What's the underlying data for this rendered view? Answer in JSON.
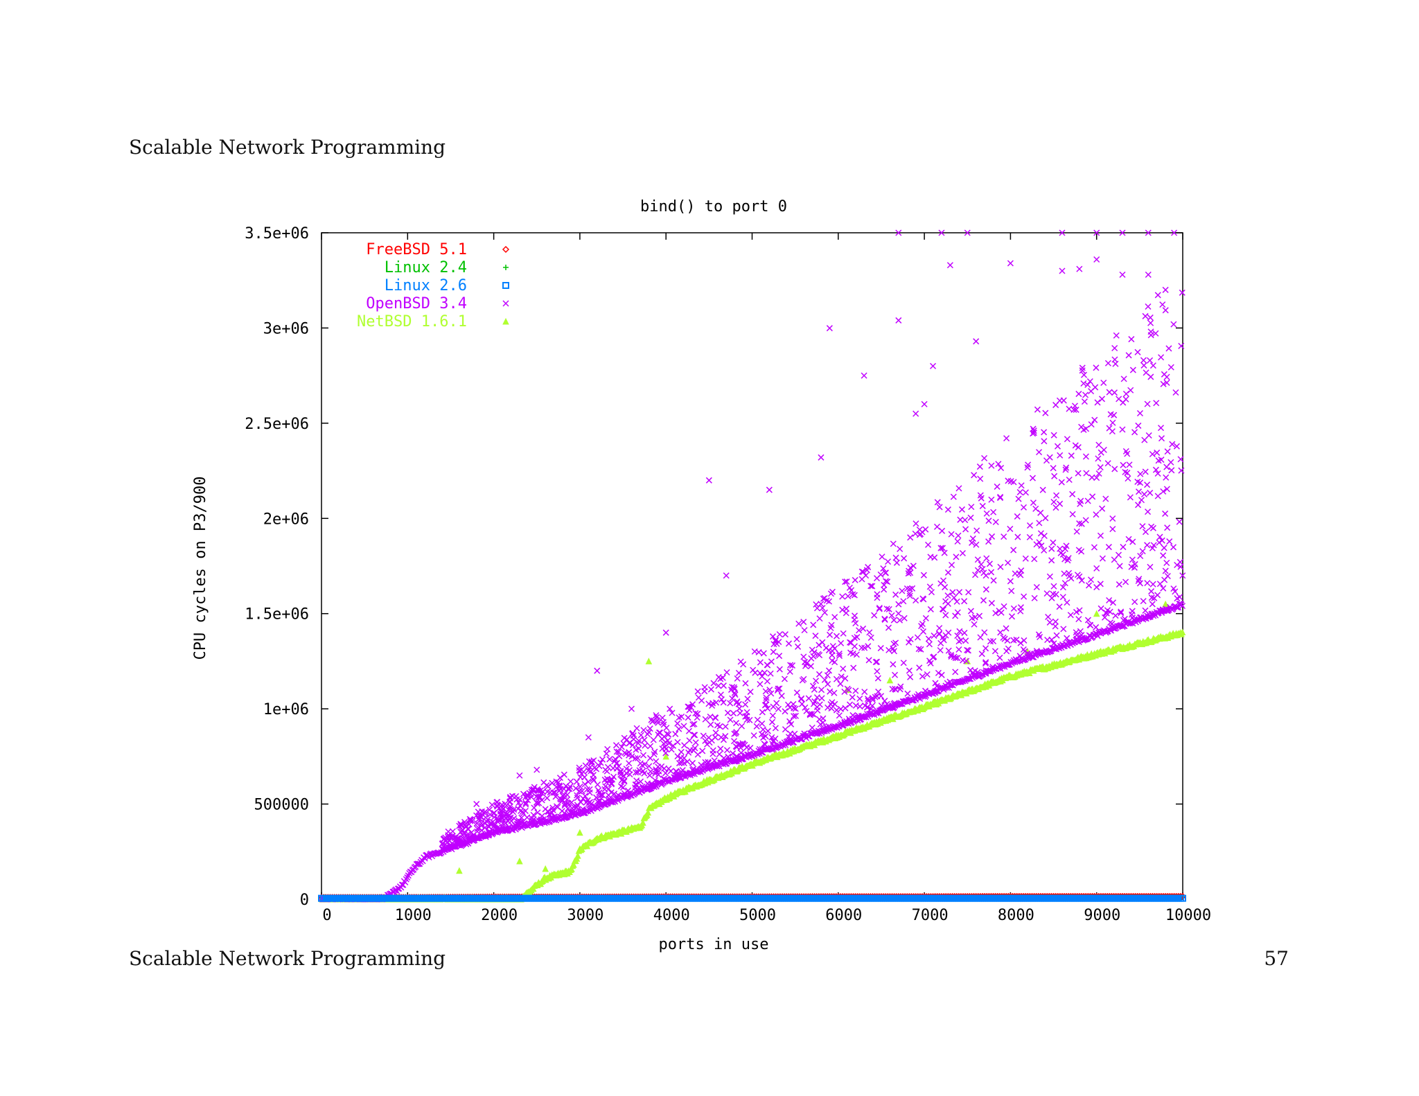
{
  "page": {
    "header_title": "Scalable Network Programming",
    "footer_title": "Scalable Network Programming",
    "page_number": "57"
  },
  "chart_data": {
    "type": "scatter",
    "title": "bind() to port 0",
    "xlabel": "ports in use",
    "ylabel": "CPU cycles on P3/900",
    "xlim": [
      0,
      10000
    ],
    "ylim": [
      0,
      3500000
    ],
    "x_ticks": [
      0,
      1000,
      2000,
      3000,
      4000,
      5000,
      6000,
      7000,
      8000,
      9000,
      10000
    ],
    "x_tick_labels": [
      "0",
      "1000",
      "2000",
      "3000",
      "4000",
      "5000",
      "6000",
      "7000",
      "8000",
      "9000",
      "10000"
    ],
    "y_ticks": [
      0,
      500000,
      1000000,
      1500000,
      2000000,
      2500000,
      3000000,
      3500000
    ],
    "y_tick_labels": [
      "0",
      "500000",
      "1e+06",
      "1.5e+06",
      "2e+06",
      "2.5e+06",
      "3e+06",
      "3.5e+06"
    ],
    "grid": false,
    "legend_position": "top-left",
    "series": [
      {
        "name": "FreeBSD 5.1",
        "color": "#ff0000",
        "marker": "diamond",
        "points": [
          [
            0,
            10000
          ],
          [
            1000,
            10000
          ],
          [
            2000,
            12000
          ],
          [
            3000,
            12000
          ],
          [
            4000,
            13000
          ],
          [
            5000,
            13000
          ],
          [
            6000,
            14000
          ],
          [
            7000,
            14000
          ],
          [
            8000,
            15000
          ],
          [
            9000,
            15000
          ],
          [
            10000,
            15000
          ]
        ]
      },
      {
        "name": "Linux 2.4",
        "color": "#00c000",
        "marker": "plus",
        "points": [
          [
            0,
            10000
          ],
          [
            2000,
            10000
          ],
          [
            4000,
            11000
          ],
          [
            6000,
            11000
          ],
          [
            8000,
            12000
          ],
          [
            10000,
            12000
          ]
        ]
      },
      {
        "name": "Linux 2.6",
        "color": "#0080ff",
        "marker": "square",
        "points": [
          [
            0,
            5000
          ],
          [
            1000,
            5000
          ],
          [
            2000,
            5000
          ],
          [
            2500,
            5000
          ],
          [
            3000,
            5000
          ],
          [
            4000,
            5000
          ],
          [
            5000,
            5000
          ],
          [
            6000,
            5000
          ],
          [
            7000,
            5000
          ],
          [
            8000,
            5000
          ],
          [
            9000,
            5000
          ],
          [
            10000,
            5000
          ]
        ]
      },
      {
        "name": "OpenBSD 3.4",
        "color": "#c000ff",
        "marker": "x",
        "baseline": [
          [
            0,
            0
          ],
          [
            700,
            0
          ],
          [
            800,
            20000
          ],
          [
            950,
            80000
          ],
          [
            1050,
            150000
          ],
          [
            1200,
            220000
          ],
          [
            2000,
            350000
          ],
          [
            3000,
            450000
          ],
          [
            4000,
            620000
          ],
          [
            5000,
            760000
          ],
          [
            6000,
            910000
          ],
          [
            7000,
            1070000
          ],
          [
            8000,
            1240000
          ],
          [
            9000,
            1390000
          ],
          [
            10000,
            1550000
          ]
        ],
        "scatter_region": {
          "x_range": [
            1400,
            10000
          ],
          "y_min_above_baseline": 0,
          "y_max_spread_fraction": 1.15
        },
        "outliers": [
          [
            1800,
            500000
          ],
          [
            2300,
            650000
          ],
          [
            2500,
            680000
          ],
          [
            3100,
            850000
          ],
          [
            3200,
            1200000
          ],
          [
            3600,
            1000000
          ],
          [
            4000,
            1400000
          ],
          [
            4500,
            2200000
          ],
          [
            4700,
            1700000
          ],
          [
            5200,
            2150000
          ],
          [
            5800,
            2320000
          ],
          [
            5900,
            2999000
          ],
          [
            6300,
            2750000
          ],
          [
            6700,
            3040000
          ],
          [
            6900,
            2550000
          ],
          [
            7000,
            2600000
          ],
          [
            7100,
            2800000
          ],
          [
            7300,
            3330000
          ],
          [
            7600,
            2930000
          ],
          [
            8000,
            3340000
          ],
          [
            8600,
            3300000
          ],
          [
            8800,
            3310000
          ],
          [
            9000,
            3360000
          ],
          [
            9300,
            3280000
          ],
          [
            9600,
            3280000
          ],
          [
            9800,
            3200000
          ],
          [
            6700,
            3500000
          ],
          [
            7200,
            3500000
          ],
          [
            7500,
            3500000
          ],
          [
            8600,
            3500000
          ],
          [
            9000,
            3500000
          ],
          [
            9300,
            3500000
          ],
          [
            9600,
            3500000
          ],
          [
            9900,
            3500000
          ]
        ]
      },
      {
        "name": "NetBSD 1.6.1",
        "color": "#b0ff30",
        "marker": "triangle",
        "baseline": [
          [
            0,
            0
          ],
          [
            2300,
            0
          ],
          [
            2600,
            110000
          ],
          [
            2900,
            150000
          ],
          [
            3000,
            260000
          ],
          [
            3200,
            320000
          ],
          [
            3700,
            380000
          ],
          [
            3800,
            470000
          ],
          [
            4000,
            530000
          ],
          [
            4300,
            590000
          ],
          [
            5000,
            710000
          ],
          [
            6000,
            860000
          ],
          [
            7000,
            1010000
          ],
          [
            8000,
            1170000
          ],
          [
            9000,
            1290000
          ],
          [
            10000,
            1400000
          ]
        ],
        "outliers": [
          [
            1600,
            150000
          ],
          [
            2300,
            200000
          ],
          [
            2600,
            160000
          ],
          [
            3000,
            350000
          ],
          [
            3800,
            1250000
          ],
          [
            4000,
            750000
          ],
          [
            6100,
            1100000
          ],
          [
            6600,
            1150000
          ],
          [
            7500,
            1250000
          ],
          [
            8200,
            1300000
          ],
          [
            9000,
            1500000
          ],
          [
            9800,
            1550000
          ]
        ]
      }
    ]
  }
}
